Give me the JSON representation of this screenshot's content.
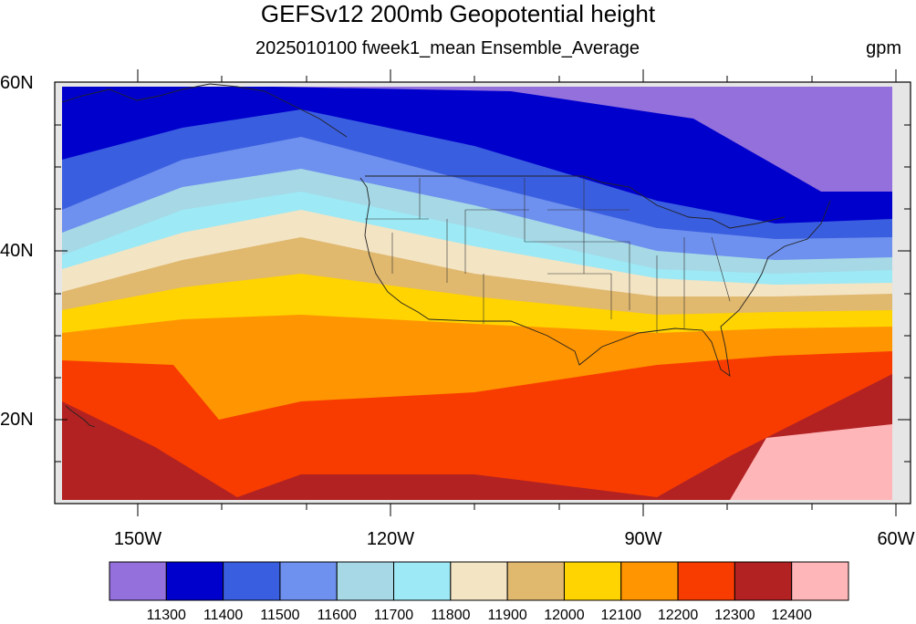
{
  "title": "GEFSv12 200mb Geopotential height",
  "subtitle": "2025010100 fweek1_mean Ensemble_Average",
  "units": "gpm",
  "lat_labels": [
    "60N",
    "40N",
    "20N"
  ],
  "lon_labels": [
    "150W",
    "120W",
    "90W",
    "60W"
  ],
  "colorbar": {
    "colors": [
      "#9370db",
      "#0000cd",
      "#3a5ee0",
      "#6e90ee",
      "#a6d8e6",
      "#9de9f5",
      "#f3e4c4",
      "#e0b86e",
      "#ffd400",
      "#ff9500",
      "#f83c00",
      "#b22222",
      "#ffb6b9"
    ],
    "labels": [
      "11300",
      "11400",
      "11500",
      "11600",
      "11700",
      "11800",
      "11900",
      "12000",
      "12100",
      "12200",
      "12300",
      "12400"
    ]
  },
  "map": {
    "lat_range": [
      10,
      60
    ],
    "lon_range": [
      -160,
      -60
    ],
    "background": "#e6e6e6"
  }
}
